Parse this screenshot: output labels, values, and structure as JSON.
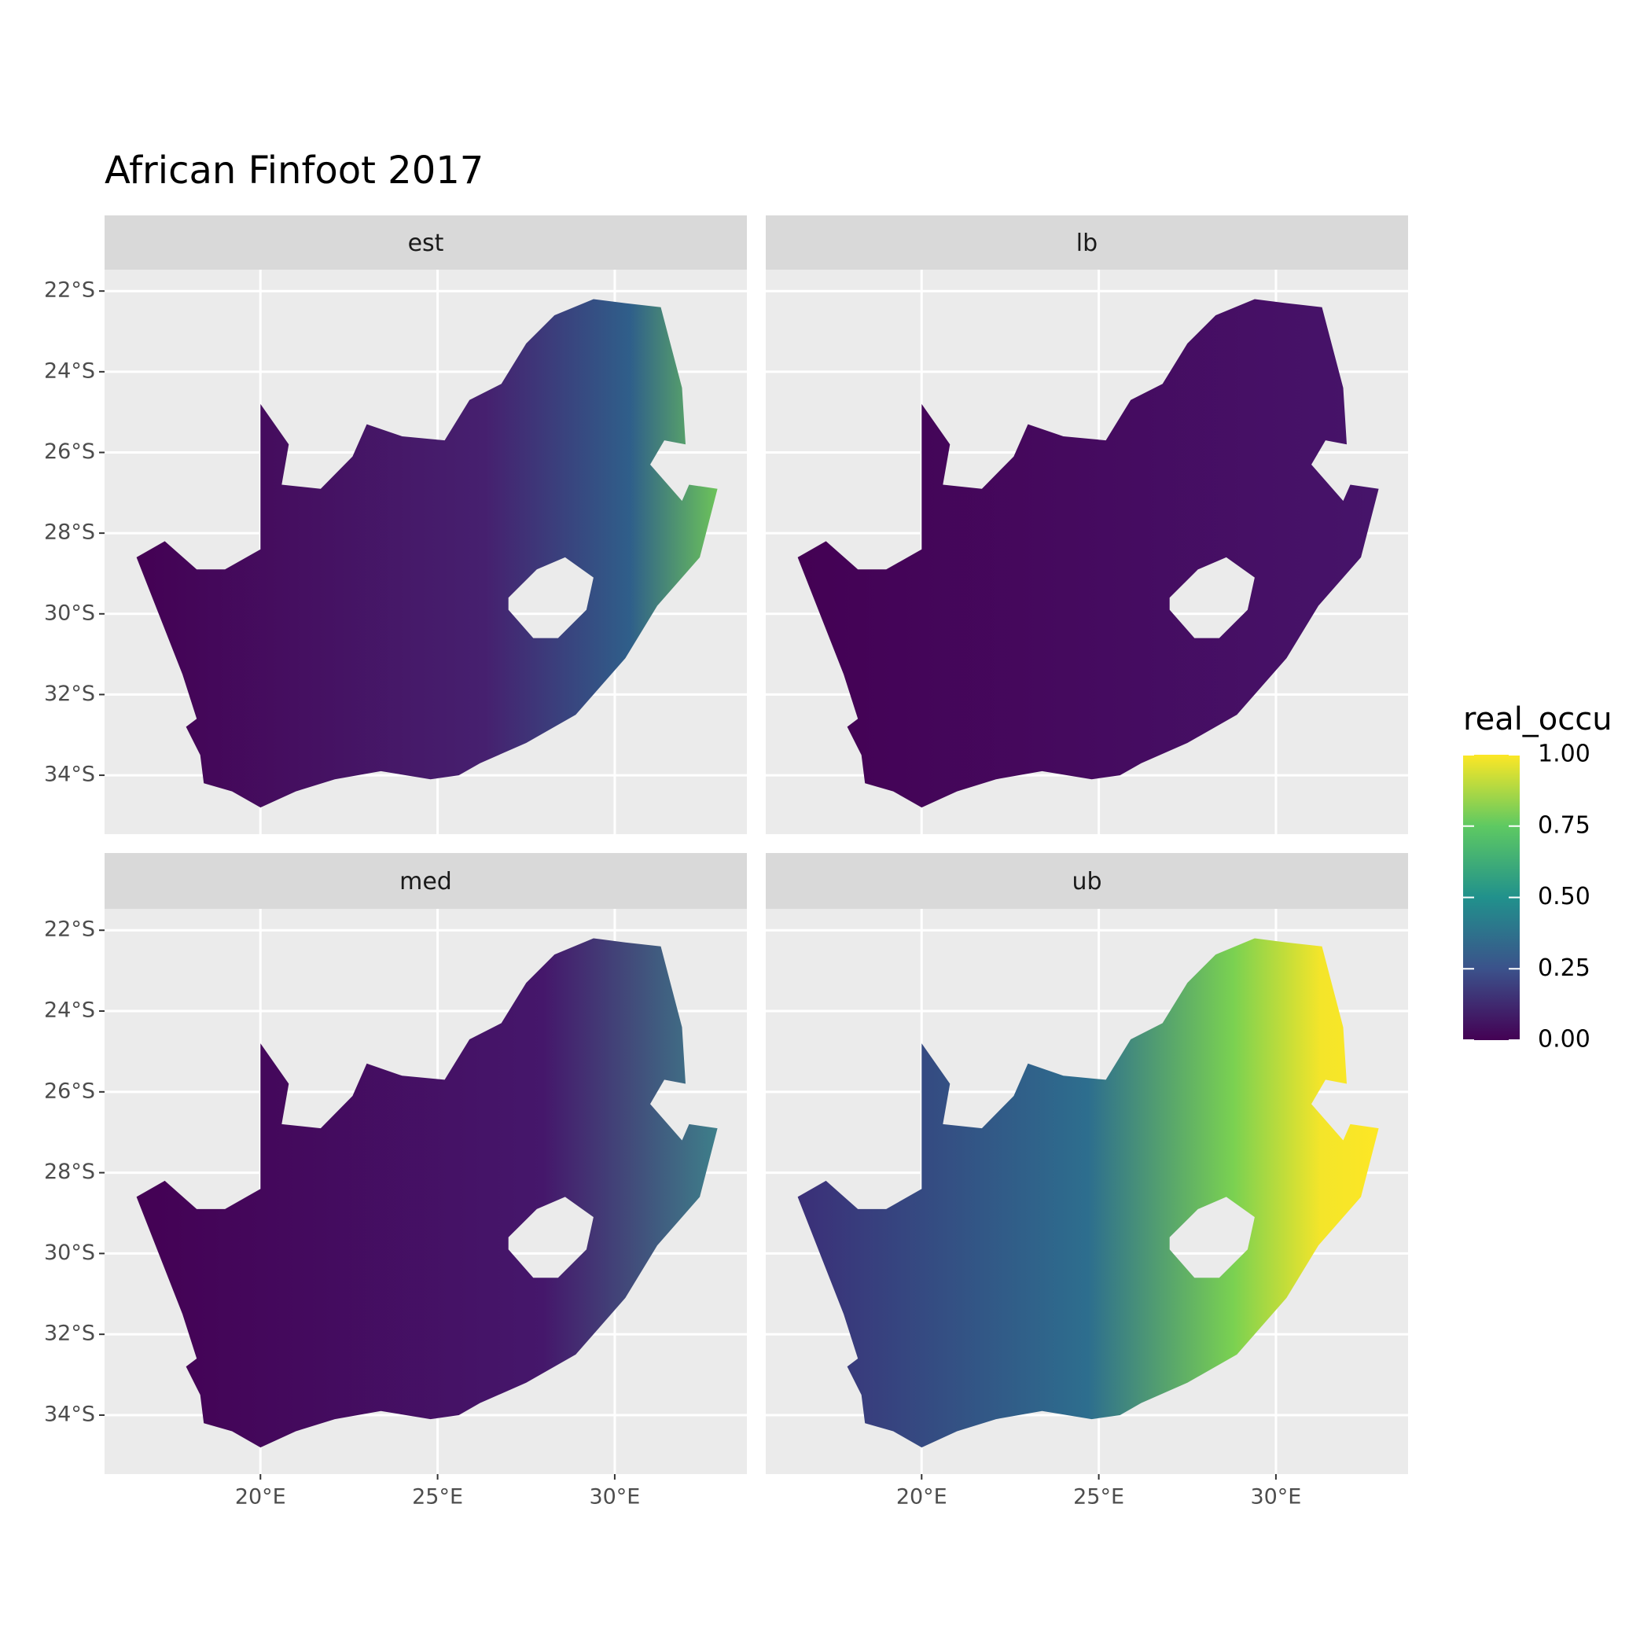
{
  "chart_data": {
    "type": "map",
    "title": "African Finfoot 2017",
    "facets": [
      "est",
      "lb",
      "med",
      "ub"
    ],
    "xlim": [
      15.6,
      33.73
    ],
    "ylim": [
      -35.46,
      -21.47
    ],
    "xticks": [
      {
        "value": 20,
        "label": "20°E"
      },
      {
        "value": 25,
        "label": "25°E"
      },
      {
        "value": 30,
        "label": "30°E"
      }
    ],
    "yticks": [
      {
        "value": -22,
        "label": "22°S"
      },
      {
        "value": -24,
        "label": "24°S"
      },
      {
        "value": -26,
        "label": "26°S"
      },
      {
        "value": -28,
        "label": "28°S"
      },
      {
        "value": -30,
        "label": "30°S"
      },
      {
        "value": -32,
        "label": "32°S"
      },
      {
        "value": -34,
        "label": "34°S"
      }
    ],
    "legend": {
      "title": "real_occu",
      "range": [
        0,
        1
      ],
      "ticks": [
        {
          "value": 0,
          "label": "0.00"
        },
        {
          "value": 0.25,
          "label": "0.25"
        },
        {
          "value": 0.5,
          "label": "0.50"
        },
        {
          "value": 0.75,
          "label": "0.75"
        },
        {
          "value": 1,
          "label": "1.00"
        }
      ]
    }
  }
}
